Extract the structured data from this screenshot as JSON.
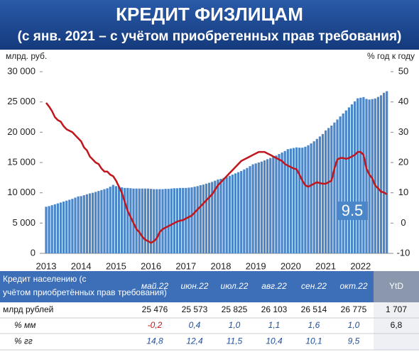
{
  "chart_data": {
    "type": "bar-line",
    "title": "КРЕДИТ ФИЗЛИЦАМ",
    "subtitle": "(с янв. 2021 – с учётом приобретенных прав требования)",
    "y_label": "млрд. руб.",
    "y2_label": "% год к году",
    "annotation": "9.5",
    "categories": [
      "2013",
      null,
      null,
      null,
      null,
      null,
      null,
      null,
      null,
      null,
      null,
      null,
      "2014",
      null,
      null,
      null,
      null,
      null,
      null,
      null,
      null,
      null,
      null,
      null,
      "2015",
      null,
      null,
      null,
      null,
      null,
      null,
      null,
      null,
      null,
      null,
      null,
      "2016",
      null,
      null,
      null,
      null,
      null,
      null,
      null,
      null,
      null,
      null,
      null,
      "2017",
      null,
      null,
      null,
      null,
      null,
      null,
      null,
      null,
      null,
      null,
      null,
      "2018",
      null,
      null,
      null,
      null,
      null,
      null,
      null,
      null,
      null,
      null,
      null,
      "2019",
      null,
      null,
      null,
      null,
      null,
      null,
      null,
      null,
      null,
      null,
      null,
      "2020",
      null,
      null,
      null,
      null,
      null,
      null,
      null,
      null,
      null,
      null,
      null,
      "2021",
      null,
      null,
      null,
      null,
      null,
      null,
      null,
      null,
      null,
      null,
      null,
      "2022",
      null,
      null,
      null,
      null,
      null,
      null,
      null,
      null,
      null
    ],
    "series": [
      {
        "type": "bar",
        "color": "#4a86c8",
        "values": [
          7700,
          7800,
          7950,
          8100,
          8250,
          8400,
          8550,
          8700,
          8850,
          9000,
          9200,
          9400,
          9450,
          9600,
          9750,
          9900,
          10000,
          10150,
          10300,
          10450,
          10600,
          10750,
          11000,
          11300,
          11100,
          11000,
          10900,
          10800,
          10800,
          10750,
          10700,
          10700,
          10700,
          10700,
          10700,
          10700,
          10650,
          10600,
          10600,
          10600,
          10600,
          10650,
          10650,
          10700,
          10750,
          10750,
          10800,
          10800,
          10800,
          10850,
          10900,
          11000,
          11100,
          11250,
          11350,
          11500,
          11650,
          11800,
          12000,
          12200,
          12300,
          12450,
          12600,
          12800,
          13000,
          13200,
          13400,
          13600,
          13850,
          14100,
          14400,
          14700,
          14850,
          15000,
          15150,
          15350,
          15550,
          15750,
          15950,
          16150,
          16400,
          16650,
          16900,
          17200,
          17300,
          17400,
          17500,
          17450,
          17450,
          17600,
          17850,
          18150,
          18500,
          18900,
          19300,
          19700,
          20300,
          20700,
          21100,
          21600,
          22100,
          22600,
          23100,
          23600,
          24100,
          24600,
          25100,
          25600,
          25700,
          25800,
          25500,
          25400,
          25476,
          25573,
          25825,
          26103,
          26514,
          26775
        ]
      },
      {
        "type": "line",
        "axis": "y2",
        "color": "#c0161c",
        "values": [
          39.7,
          38.5,
          37,
          35,
          34,
          33.5,
          32,
          31,
          30.5,
          30,
          29,
          28,
          27,
          25,
          24,
          22,
          21,
          20,
          19.5,
          18,
          17,
          17,
          16,
          15.5,
          14,
          12,
          10,
          7,
          4,
          2,
          0,
          -2,
          -3,
          -4.5,
          -5.5,
          -6,
          -6.5,
          -6,
          -5,
          -3,
          -2,
          -1.5,
          -1,
          -0.5,
          0,
          0.5,
          0.8,
          1,
          1.5,
          2,
          2.5,
          3.5,
          4.5,
          5.5,
          6.5,
          7.5,
          8.5,
          9.5,
          11,
          12.5,
          13.5,
          14.5,
          15.5,
          16.5,
          17.5,
          18.5,
          19.5,
          20.5,
          21,
          21.5,
          22,
          22.5,
          23,
          23.5,
          23.5,
          23.5,
          23,
          22.5,
          22,
          21.5,
          21,
          20.5,
          19.5,
          19,
          18.5,
          18,
          17.8,
          16,
          14,
          12.5,
          12,
          12.5,
          13,
          13.5,
          13.2,
          13,
          13,
          13.5,
          14,
          18,
          21,
          21.5,
          21.5,
          21.2,
          21.5,
          22,
          22.5,
          23.5,
          23.5,
          22.5,
          18,
          16,
          14.8,
          12.4,
          11.5,
          10.4,
          10.1,
          9.5
        ]
      }
    ],
    "ylim": [
      0,
      30000
    ],
    "yticks": [
      0,
      {
        "value": 5000,
        "label": "5 000"
      },
      {
        "value": 10000,
        "label": "10 000"
      },
      {
        "value": 15000,
        "label": "15 000"
      },
      {
        "value": 20000,
        "label": "20 000"
      },
      {
        "value": 25000,
        "label": "25 000"
      },
      {
        "value": 30000,
        "label": "30 000"
      }
    ],
    "y2lim": [
      -10,
      50
    ],
    "y2ticks": [
      -10,
      0,
      10,
      20,
      30,
      40,
      50
    ],
    "grid": false
  },
  "table": {
    "header": [
      "Кредит населению (с учётом приобретённых прав требования)",
      "май.22",
      "июн.22",
      "июл.22",
      "авг.22",
      "сен.22",
      "окт.22",
      "YtD"
    ],
    "rows": [
      [
        "млрд рублей",
        "25 476",
        "25 573",
        "25 825",
        "26 103",
        "26 514",
        "26 775",
        "1 707"
      ],
      [
        "% мм",
        "-0,2",
        "0,4",
        "1,0",
        "1,1",
        "1,6",
        "1,0",
        "6,8"
      ],
      [
        "% гг",
        "14,8",
        "12,4",
        "11,5",
        "10,4",
        "10,1",
        "9,5"
      ]
    ]
  }
}
